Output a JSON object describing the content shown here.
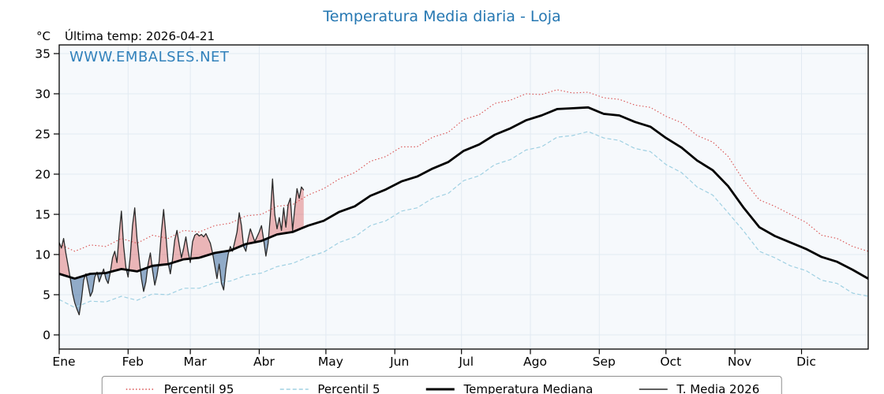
{
  "title": "Temperatura Media diaria - Loja",
  "header": {
    "unit": "°C",
    "last_temp": "Última temp: 2026-04-21"
  },
  "watermark": "WWW.EMBALSES.NET",
  "legend": {
    "items": [
      {
        "label": "Percentil 95"
      },
      {
        "label": "Percentil 5"
      },
      {
        "label": "Temperatura Mediana"
      },
      {
        "label": "T. Media 2026"
      }
    ]
  },
  "chart_data": {
    "type": "line",
    "title": "Temperatura Media diaria - Loja",
    "subtitle": "Última temp: 2026-04-21",
    "grid": true,
    "legend_position": "bottom",
    "x_axis": {
      "unit": "day_of_year",
      "range": [
        1,
        365
      ],
      "month_start_days": [
        1,
        32,
        60,
        91,
        121,
        152,
        182,
        213,
        244,
        274,
        305,
        335
      ],
      "tick_labels": [
        "Ene",
        "Feb",
        "Mar",
        "Abr",
        "May",
        "Jun",
        "Jul",
        "Ago",
        "Sep",
        "Oct",
        "Nov",
        "Dic"
      ]
    },
    "y_axis": {
      "label": "°C",
      "ticks": [
        0,
        5,
        10,
        15,
        20,
        25,
        30,
        35
      ],
      "range": [
        -1.8,
        36.1
      ]
    },
    "plot_background": "#f6f9fc",
    "series": [
      {
        "name": "Percentil 95",
        "style": "dotted",
        "width": 1.1,
        "color": "#d94f4f",
        "x": [
          1,
          8,
          15,
          22,
          29,
          36,
          43,
          50,
          57,
          64,
          71,
          78,
          85,
          92,
          99,
          106,
          113,
          120,
          127,
          134,
          141,
          148,
          155,
          162,
          169,
          176,
          183,
          190,
          197,
          204,
          211,
          218,
          225,
          232,
          239,
          246,
          253,
          260,
          267,
          274,
          281,
          288,
          295,
          302,
          309,
          316,
          323,
          330,
          337,
          344,
          351,
          358,
          365
        ],
        "y": [
          11.3,
          10.4,
          11.2,
          11.0,
          12.0,
          11.4,
          12.4,
          12.0,
          13.0,
          12.8,
          13.6,
          13.9,
          14.8,
          15.0,
          16.0,
          16.2,
          17.4,
          18.2,
          19.4,
          20.2,
          21.6,
          22.2,
          23.4,
          23.4,
          24.6,
          25.2,
          26.8,
          27.4,
          28.8,
          29.2,
          30.0,
          29.9,
          30.5,
          30.1,
          30.2,
          29.5,
          29.3,
          28.6,
          28.3,
          27.2,
          26.4,
          24.8,
          24.0,
          22.2,
          19.2,
          16.8,
          16.0,
          15.0,
          14.0,
          12.4,
          12.0,
          11.0,
          10.4
        ]
      },
      {
        "name": "Percentil 5",
        "style": "dashed",
        "width": 1.2,
        "color": "#9fd0e2",
        "x": [
          1,
          8,
          15,
          22,
          29,
          36,
          43,
          50,
          57,
          64,
          71,
          78,
          85,
          92,
          99,
          106,
          113,
          120,
          127,
          134,
          141,
          148,
          155,
          162,
          169,
          176,
          183,
          190,
          197,
          204,
          211,
          218,
          225,
          232,
          239,
          246,
          253,
          260,
          267,
          274,
          281,
          288,
          295,
          302,
          309,
          316,
          323,
          330,
          337,
          344,
          351,
          358,
          365
        ],
        "y": [
          4.4,
          3.4,
          4.2,
          4.1,
          4.8,
          4.3,
          5.1,
          5.0,
          5.8,
          5.8,
          6.5,
          6.7,
          7.4,
          7.7,
          8.5,
          8.9,
          9.7,
          10.3,
          11.5,
          12.2,
          13.6,
          14.2,
          15.4,
          15.8,
          17.0,
          17.6,
          19.2,
          19.8,
          21.2,
          21.8,
          23.0,
          23.4,
          24.6,
          24.8,
          25.3,
          24.5,
          24.2,
          23.2,
          22.8,
          21.2,
          20.2,
          18.4,
          17.4,
          15.2,
          12.9,
          10.4,
          9.6,
          8.6,
          8.0,
          6.8,
          6.4,
          5.2,
          4.8
        ]
      },
      {
        "name": "Temperatura Mediana",
        "style": "solid",
        "width": 2.8,
        "color": "#000000",
        "x": [
          1,
          8,
          15,
          22,
          29,
          36,
          43,
          50,
          57,
          64,
          71,
          78,
          85,
          92,
          99,
          106,
          113,
          120,
          127,
          134,
          141,
          148,
          155,
          162,
          169,
          176,
          183,
          190,
          197,
          204,
          211,
          218,
          225,
          232,
          239,
          246,
          253,
          260,
          267,
          274,
          281,
          288,
          295,
          302,
          309,
          316,
          323,
          330,
          337,
          344,
          351,
          358,
          365
        ],
        "y": [
          7.6,
          7.0,
          7.6,
          7.7,
          8.2,
          7.9,
          8.6,
          8.8,
          9.4,
          9.6,
          10.2,
          10.5,
          11.3,
          11.7,
          12.5,
          12.8,
          13.6,
          14.2,
          15.3,
          16.0,
          17.3,
          18.1,
          19.1,
          19.7,
          20.7,
          21.5,
          22.9,
          23.7,
          24.9,
          25.7,
          26.7,
          27.3,
          28.1,
          28.2,
          28.3,
          27.5,
          27.3,
          26.5,
          25.9,
          24.5,
          23.3,
          21.7,
          20.5,
          18.5,
          15.8,
          13.4,
          12.3,
          11.5,
          10.7,
          9.7,
          9.1,
          8.1,
          7.0
        ]
      },
      {
        "name": "T. Media 2026",
        "style": "solid",
        "width": 1.3,
        "color": "#2a2a2a",
        "x_start_day": 1,
        "x_step": 1,
        "y": [
          11.5,
          10.8,
          12.0,
          10.2,
          8.6,
          7.0,
          5.2,
          4.0,
          3.2,
          2.5,
          4.4,
          6.8,
          7.6,
          6.2,
          4.8,
          5.4,
          7.2,
          7.8,
          6.6,
          7.4,
          8.2,
          7.0,
          6.4,
          7.8,
          9.6,
          10.4,
          9.0,
          12.6,
          15.4,
          11.0,
          8.4,
          7.2,
          9.8,
          13.6,
          15.8,
          12.0,
          9.4,
          7.0,
          5.4,
          6.6,
          8.8,
          10.2,
          8.0,
          6.2,
          7.4,
          9.2,
          12.8,
          15.6,
          12.4,
          9.0,
          7.6,
          9.4,
          11.8,
          13.0,
          11.2,
          9.6,
          10.8,
          12.2,
          10.4,
          9.0,
          11.6,
          12.4,
          12.6,
          12.3,
          12.5,
          12.2,
          12.6,
          12.0,
          11.4,
          10.2,
          8.6,
          7.0,
          8.8,
          6.4,
          5.6,
          8.2,
          10.0,
          11.0,
          10.4,
          11.6,
          12.8,
          15.2,
          13.6,
          11.0,
          10.4,
          12.0,
          13.2,
          12.4,
          11.6,
          12.2,
          12.8,
          13.6,
          11.8,
          9.8,
          11.4,
          14.8,
          19.4,
          15.0,
          13.2,
          14.6,
          13.0,
          15.8,
          13.4,
          16.2,
          17.0,
          13.0,
          15.8,
          18.2,
          17.0,
          18.4,
          18.0
        ]
      }
    ],
    "fills": [
      {
        "name": "2026-above-median",
        "between": [
          "T. Media 2026",
          "Temperatura Mediana"
        ],
        "when": "above",
        "color": "rgba(217,79,79,0.40)"
      },
      {
        "name": "2026-below-median",
        "between": [
          "T. Media 2026",
          "Temperatura Mediana"
        ],
        "when": "below",
        "color": "rgba(62,107,156,0.55)"
      }
    ]
  }
}
